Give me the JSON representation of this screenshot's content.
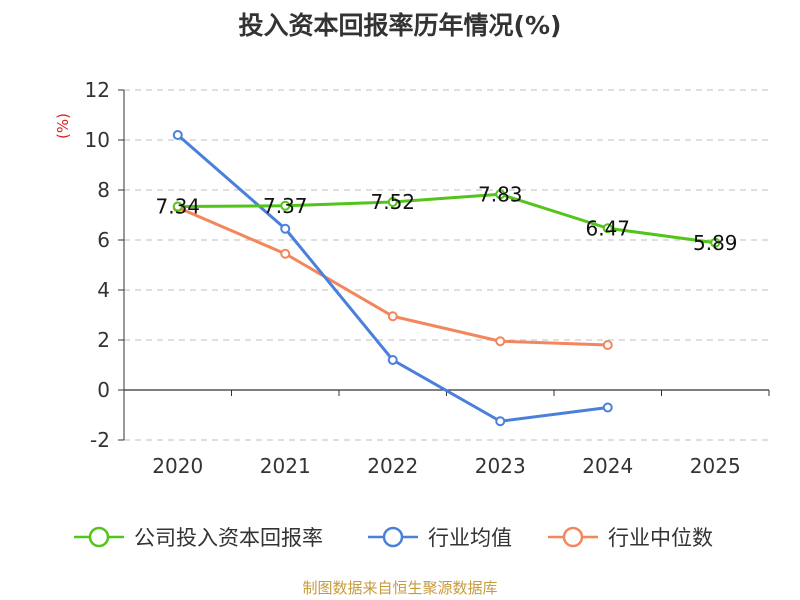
{
  "chart_data": {
    "type": "line",
    "title": "投入资本回报率历年情况(%)",
    "ylabel": "(%)",
    "xlabel": "",
    "categories": [
      "2020",
      "2021",
      "2022",
      "2023",
      "2024",
      "2025"
    ],
    "ylim": [
      -2,
      12
    ],
    "yticks": [
      -2,
      0,
      2,
      4,
      6,
      8,
      10,
      12
    ],
    "grid": true,
    "legend_position": "bottom",
    "series": [
      {
        "name": "公司投入资本回报率",
        "color": "#52c41a",
        "values": [
          7.34,
          7.37,
          7.52,
          7.83,
          6.47,
          5.89
        ],
        "labels": [
          "7.34",
          "7.37",
          "7.52",
          "7.83",
          "6.47",
          "5.89"
        ]
      },
      {
        "name": "行业均值",
        "color": "#4a7fdc",
        "values": [
          10.2,
          6.45,
          1.2,
          -1.25,
          -0.7,
          null
        ]
      },
      {
        "name": "行业中位数",
        "color": "#f4865b",
        "values": [
          7.3,
          5.45,
          2.95,
          1.95,
          1.8,
          null
        ]
      }
    ]
  },
  "footer": {
    "source": "制图数据来自恒生聚源数据库"
  }
}
